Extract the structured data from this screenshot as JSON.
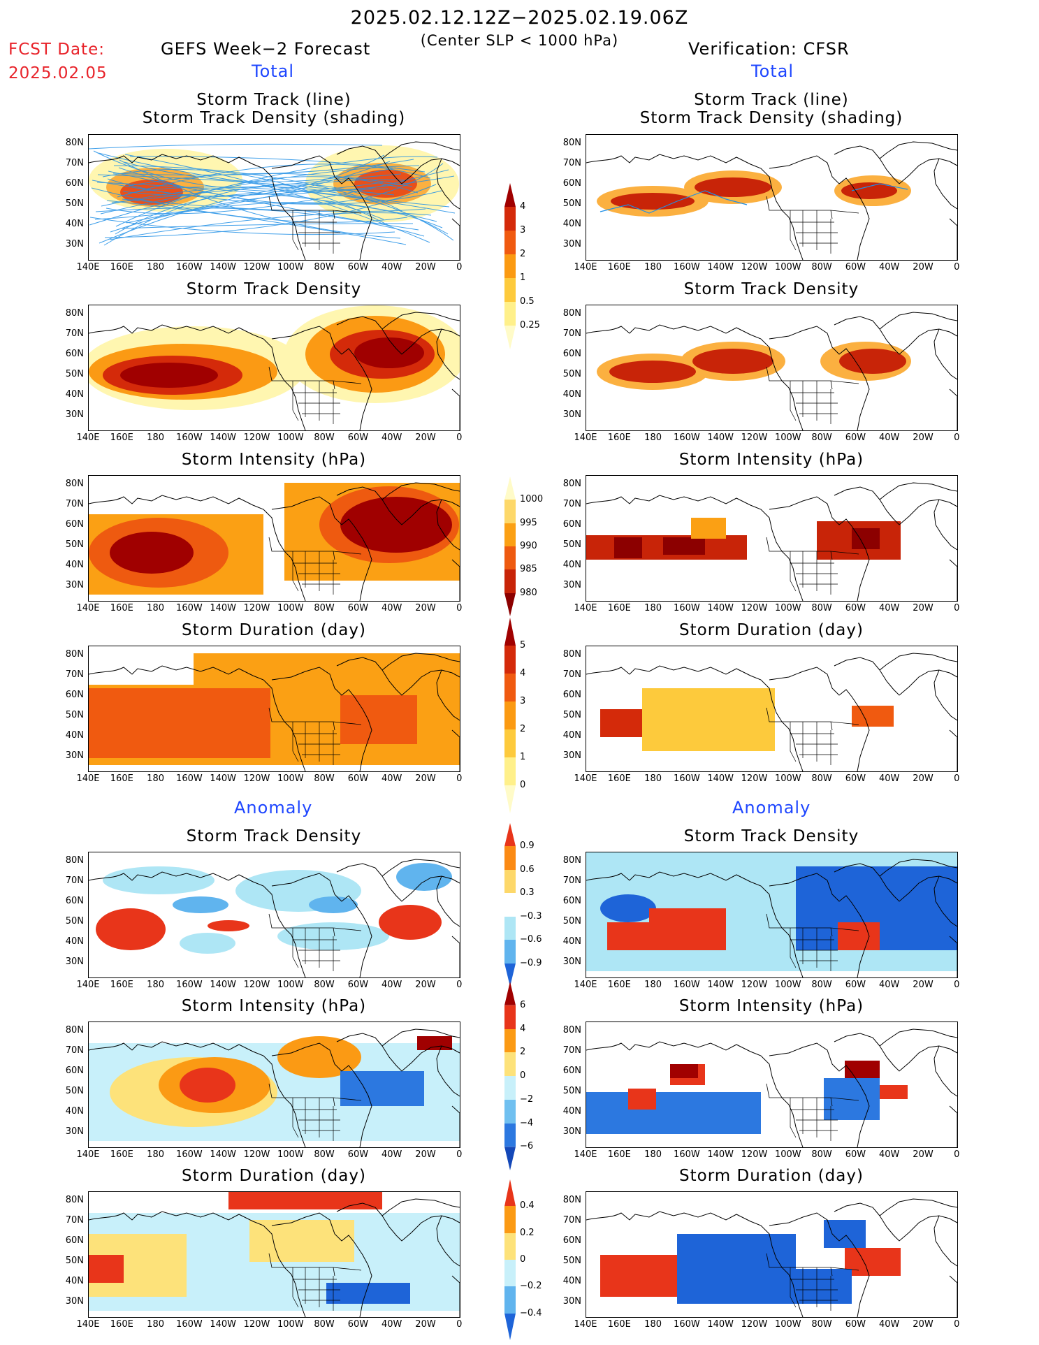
{
  "header": {
    "date_range": "2025.02.12.12Z−2025.02.19.06Z",
    "subtitle": "(Center SLP < 1000 hPa)",
    "fcst_label": "FCST Date:",
    "fcst_date": "2025.02.05",
    "left_title": "GEFS Week−2 Forecast",
    "right_title": "Verification: CFSR",
    "total_label": "Total",
    "anomaly_label": "Anomaly"
  },
  "panel_titles": {
    "track_line": "Storm Track (line)",
    "track_shading": "Storm Track Density (shading)",
    "density": "Storm Track Density",
    "intensity": "Storm Intensity (hPa)",
    "duration": "Storm Duration (day)"
  },
  "axes": {
    "lat_labels": [
      "80N",
      "70N",
      "60N",
      "50N",
      "40N",
      "30N"
    ],
    "lon_labels": [
      "140E",
      "160E",
      "180",
      "160W",
      "140W",
      "120W",
      "100W",
      "80W",
      "60W",
      "40W",
      "20W",
      "0"
    ]
  },
  "colorbars": {
    "density_total": {
      "labels": [
        "4",
        "3",
        "2",
        "1",
        "0.5",
        "0.25"
      ],
      "colors": [
        "#a00000",
        "#d42a0a",
        "#f05a10",
        "#fb9a12",
        "#fdca3c",
        "#fff08a",
        "#fffbc8"
      ]
    },
    "intensity_total": {
      "labels": [
        "1000",
        "995",
        "990",
        "985",
        "980"
      ],
      "colors": [
        "#fffbc8",
        "#fdd86a",
        "#fba014",
        "#ee5a10",
        "#c82408",
        "#8c0000"
      ]
    },
    "duration_total": {
      "labels": [
        "5",
        "4",
        "3",
        "2",
        "1",
        "0"
      ],
      "colors": [
        "#a00000",
        "#d42a0a",
        "#f05a10",
        "#fb9a12",
        "#fdca3c",
        "#fff08a",
        "#fffbc8"
      ]
    },
    "density_anom": {
      "labels": [
        "0.9",
        "0.6",
        "0.3",
        "−0.3",
        "−0.6",
        "−0.9"
      ],
      "colors": [
        "#e8351a",
        "#fb8a14",
        "#fdd86a",
        "#ffffff",
        "#aee6f5",
        "#60b4ee",
        "#1e64d8"
      ]
    },
    "intensity_anom": {
      "labels": [
        "6",
        "4",
        "2",
        "0",
        "−2",
        "−4",
        "−6"
      ],
      "colors": [
        "#a00000",
        "#e8351a",
        "#fb9a14",
        "#fde27a",
        "#c8f0fa",
        "#70c0f0",
        "#2c78e0",
        "#1448b8"
      ]
    },
    "duration_anom": {
      "labels": [
        "0.4",
        "0.2",
        "0",
        "−0.2",
        "−0.4"
      ],
      "colors": [
        "#e8351a",
        "#fb9a14",
        "#fde27a",
        "#c8f0fa",
        "#60b4ee",
        "#1e64d8"
      ]
    }
  },
  "colors": {
    "fcst_red": "#e8232a",
    "label_blue": "#1e46ff",
    "track_line": "#1f8fe6"
  }
}
